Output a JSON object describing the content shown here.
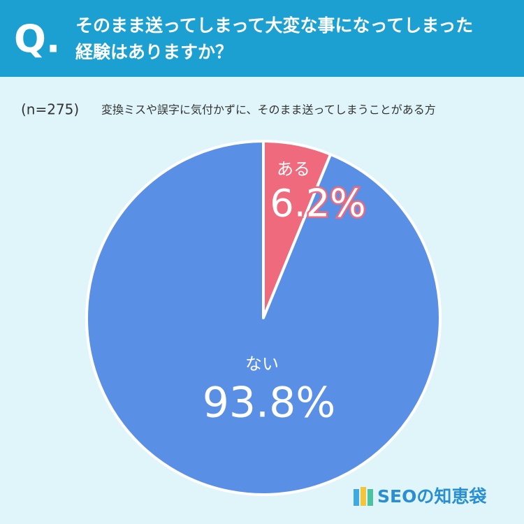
{
  "chart_data": {
    "type": "pie",
    "badge": "Q.",
    "title_lines": [
      "そのまま送ってしまって大変な事になってしまった",
      "経験はありますか？"
    ],
    "sample": "(n=275)",
    "subtitle": "変換ミスや誤字に気付かずに、そのまま送ってしまうことがある方",
    "categories": [
      "ある",
      "ない"
    ],
    "values": [
      6.2,
      93.8
    ],
    "value_labels": [
      "6.2%",
      "93.8%"
    ],
    "colors": [
      "#ee6a7c",
      "#5a8fe6"
    ],
    "brand": "SEOの知恵袋"
  }
}
